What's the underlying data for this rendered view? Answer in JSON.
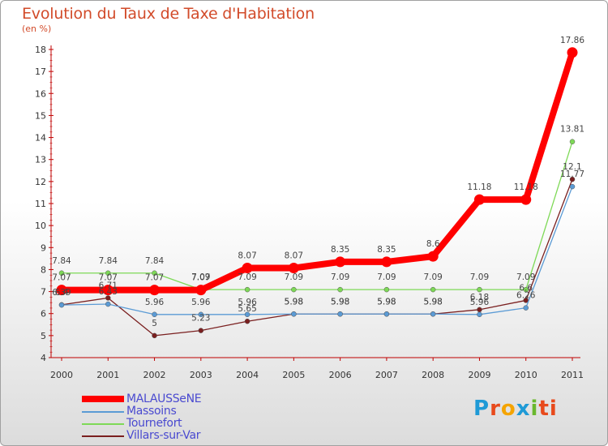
{
  "chart_data": {
    "type": "line",
    "title": "Evolution du Taux de Taxe d'Habitation",
    "ylabel": "(en %)",
    "xlabel": "",
    "ylim": [
      4,
      18
    ],
    "yticks": [
      4,
      5,
      6,
      7,
      8,
      9,
      10,
      11,
      12,
      13,
      14,
      15,
      16,
      17,
      18
    ],
    "x": [
      "2000",
      "2001",
      "2002",
      "2003",
      "2004",
      "2005",
      "2006",
      "2007",
      "2008",
      "2009",
      "2010",
      "2011"
    ],
    "grid": false,
    "legend_position": "bottom-left",
    "series": [
      {
        "name": "MALAUSSeNE",
        "color": "#ff0000",
        "values": [
          7.07,
          7.07,
          7.07,
          7.07,
          8.07,
          8.07,
          8.35,
          8.35,
          8.6,
          11.18,
          11.18,
          17.86
        ],
        "labels": [
          "7.07",
          "7.07",
          "7.07",
          "7.07",
          "8.07",
          "8.07",
          "8.35",
          "8.35",
          "8.6",
          "11.18",
          "11.18",
          "17.86"
        ]
      },
      {
        "name": "Massoins",
        "color": "#5b9bd5",
        "values": [
          6.39,
          6.43,
          5.96,
          5.96,
          5.96,
          5.98,
          5.98,
          5.98,
          5.98,
          5.96,
          6.26,
          11.77
        ],
        "labels": [
          "6.39",
          "6.43",
          "5.96",
          "5.96",
          "5.96",
          "5.98",
          "5.98",
          "5.98",
          "5.98",
          "5.96",
          "6.26",
          "11.77"
        ]
      },
      {
        "name": "Tournefort",
        "color": "#7ed957",
        "values": [
          7.84,
          7.84,
          7.84,
          7.09,
          7.09,
          7.09,
          7.09,
          7.09,
          7.09,
          7.09,
          7.09,
          13.81
        ],
        "labels": [
          "7.84",
          "7.84",
          "7.84",
          "7.09",
          "7.09",
          "7.09",
          "7.09",
          "7.09",
          "7.09",
          "7.09",
          "7.09",
          "13.81"
        ]
      },
      {
        "name": "Villars-sur-Var",
        "color": "#7a1f1f",
        "values": [
          6.4,
          6.71,
          5,
          5.23,
          5.65,
          5.98,
          5.98,
          5.98,
          5.98,
          6.18,
          6.6,
          12.1
        ],
        "labels": [
          "6.4",
          "6.71",
          "5",
          "5.23",
          "5.65",
          "5.98",
          "5.98",
          "5.98",
          "5.98",
          "6.18",
          "6.6",
          "12.1"
        ]
      }
    ]
  },
  "brand": {
    "letters": [
      "P",
      "r",
      "o",
      "x",
      "i",
      "ti"
    ]
  }
}
